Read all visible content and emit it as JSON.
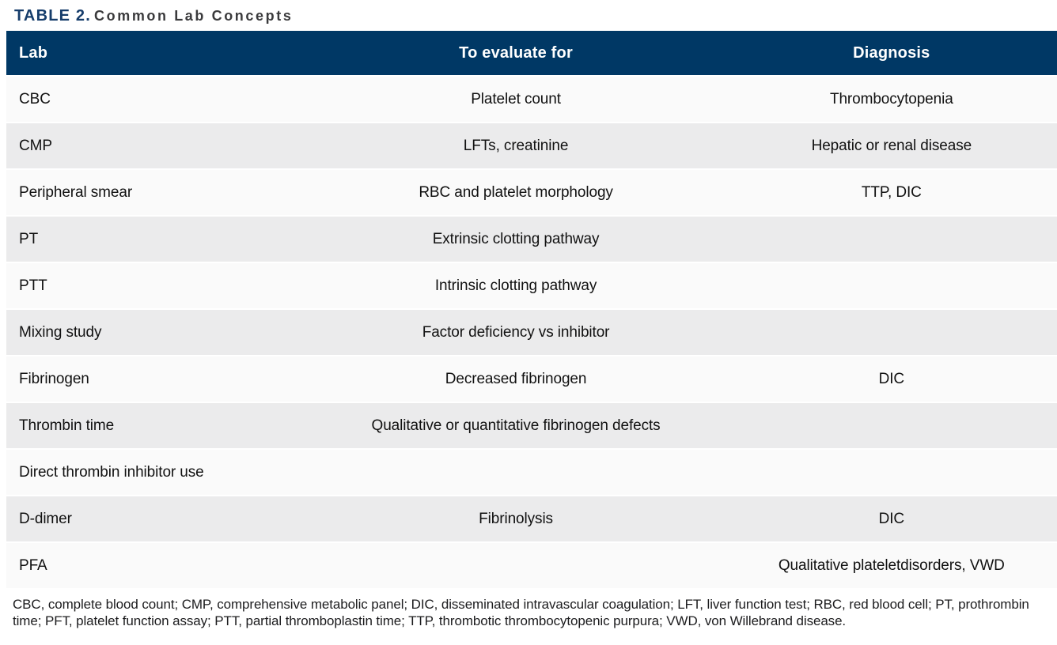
{
  "title": {
    "label": "TABLE 2.",
    "text": "Common Lab Concepts"
  },
  "table": {
    "columns": [
      "Lab",
      "To evaluate for",
      "Diagnosis"
    ],
    "rows": [
      {
        "lab": "CBC",
        "evaluate": "Platelet count",
        "diagnosis": "Thrombocytopenia"
      },
      {
        "lab": "CMP",
        "evaluate": "LFTs, creatinine",
        "diagnosis": "Hepatic or renal disease"
      },
      {
        "lab": "Peripheral smear",
        "evaluate": "RBC and platelet morphology",
        "diagnosis": "TTP, DIC"
      },
      {
        "lab": "PT",
        "evaluate": "Extrinsic clotting pathway",
        "diagnosis": ""
      },
      {
        "lab": "PTT",
        "evaluate": "Intrinsic clotting pathway",
        "diagnosis": ""
      },
      {
        "lab": "Mixing study",
        "evaluate": "Factor deficiency vs inhibitor",
        "diagnosis": ""
      },
      {
        "lab": "Fibrinogen",
        "evaluate": "Decreased fibrinogen",
        "diagnosis": "DIC"
      },
      {
        "lab": "Thrombin time",
        "evaluate": "Qualitative or quantitative fibrinogen defects",
        "diagnosis": ""
      },
      {
        "lab": "Direct thrombin inhibitor use",
        "evaluate": "",
        "diagnosis": ""
      },
      {
        "lab": "D-dimer",
        "evaluate": "Fibrinolysis",
        "diagnosis": "DIC"
      },
      {
        "lab": "PFA",
        "evaluate": "",
        "diagnosis": "Qualitative plateletdisorders, VWD"
      }
    ]
  },
  "footnote": "CBC, complete blood count; CMP, comprehensive metabolic panel; DIC, disseminated intravascular coagulation; LFT, liver function test; RBC, red blood cell; PT, prothrombin time; PFT, platelet function assay; PTT, partial thromboplastin time; TTP, thrombotic thrombocytopenic purpura; VWD, von Willebrand disease.",
  "colors": {
    "header_background": "#003865",
    "header_text": "#ffffff",
    "row_light": "#fafafa",
    "row_shaded": "#ebebec",
    "title_label": "#163d6b",
    "title_text": "#3a3a3c",
    "body_text": "#111111"
  }
}
